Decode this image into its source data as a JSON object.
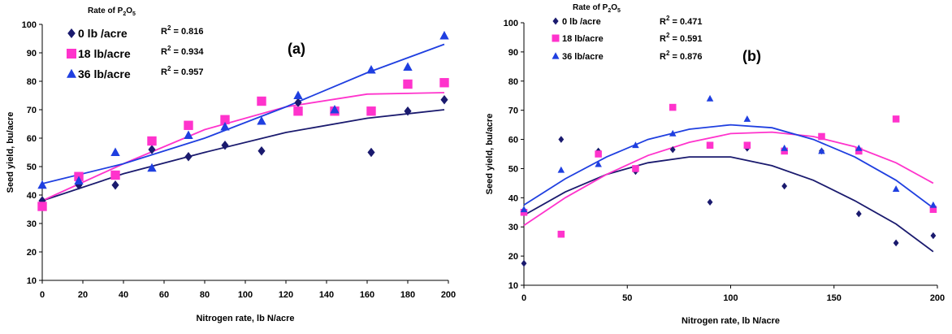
{
  "colors": {
    "s0": "#1a1a6e",
    "s18": "#ff33cc",
    "s36": "#1f3fe0"
  },
  "chart_data": [
    {
      "type": "scatter",
      "panel_label": "(a)",
      "xlabel": "Nitrogen rate, lb N/acre",
      "ylabel": "Seed yield, bu/acre",
      "xlim": [
        0,
        200
      ],
      "ylim": [
        10,
        100
      ],
      "xticks": [
        0,
        20,
        40,
        60,
        80,
        100,
        120,
        140,
        160,
        180,
        200
      ],
      "yticks": [
        10,
        20,
        30,
        40,
        50,
        60,
        70,
        80,
        90,
        100
      ],
      "grid": false,
      "legend": {
        "title_prefix": "Rate of P",
        "title_sub1": "2",
        "title_mid": "O",
        "title_sub2": "5",
        "placement": "top-left"
      },
      "series": [
        {
          "name": "0 lb /acre",
          "marker": "diamond",
          "color_key": "s0",
          "r2": "= 0.816",
          "x": [
            0,
            18,
            36,
            54,
            72,
            90,
            108,
            126,
            144,
            162,
            180,
            198
          ],
          "y": [
            38,
            43.5,
            43.5,
            56,
            53.5,
            57.5,
            55.5,
            72.5,
            69.5,
            55,
            69.5,
            73.5
          ],
          "fit": [
            [
              0,
              38
            ],
            [
              40,
              47.5
            ],
            [
              80,
              55
            ],
            [
              120,
              62
            ],
            [
              160,
              67
            ],
            [
              198,
              70
            ]
          ]
        },
        {
          "name": "18 lb/acre",
          "marker": "square",
          "color_key": "s18",
          "r2": "= 0.934",
          "x": [
            0,
            18,
            36,
            54,
            72,
            90,
            108,
            126,
            144,
            162,
            180,
            198
          ],
          "y": [
            36,
            46.5,
            47,
            59,
            64.5,
            66.5,
            73,
            69.5,
            69.5,
            69.5,
            79,
            79.5
          ],
          "fit": [
            [
              0,
              38
            ],
            [
              40,
              51
            ],
            [
              80,
              63
            ],
            [
              120,
              71
            ],
            [
              160,
              75.5
            ],
            [
              198,
              76
            ]
          ]
        },
        {
          "name": "36 lb/acre",
          "marker": "triangle",
          "color_key": "s36",
          "r2": "= 0.957",
          "x": [
            0,
            18,
            36,
            54,
            72,
            90,
            108,
            126,
            144,
            162,
            180,
            198
          ],
          "y": [
            43.5,
            45,
            55,
            49.5,
            61,
            64,
            66,
            75,
            70,
            84,
            85,
            96
          ],
          "fit": [
            [
              0,
              44
            ],
            [
              40,
              51
            ],
            [
              80,
              60
            ],
            [
              120,
              71
            ],
            [
              160,
              83
            ],
            [
              198,
              93
            ]
          ]
        }
      ]
    },
    {
      "type": "scatter",
      "panel_label": "(b)",
      "xlabel": "Nitrogen rate, lb N/acre",
      "ylabel": "Seed yield, bu/acre",
      "xlim": [
        0,
        200
      ],
      "ylim": [
        10,
        100
      ],
      "xticks": [
        0,
        50,
        100,
        150,
        200
      ],
      "yticks": [
        10,
        20,
        30,
        40,
        50,
        60,
        70,
        80,
        90,
        100
      ],
      "grid": false,
      "legend": {
        "title_prefix": "Rate of P",
        "title_sub1": "2",
        "title_mid": "O",
        "title_sub2": "5",
        "placement": "top-left"
      },
      "series": [
        {
          "name": "0 lb /acre",
          "marker": "diamond",
          "color_key": "s0",
          "r2": "= 0.471",
          "x": [
            0,
            18,
            36,
            54,
            72,
            90,
            108,
            126,
            144,
            162,
            180,
            198
          ],
          "y": [
            17.5,
            60,
            56,
            49,
            56.5,
            38.5,
            57,
            44,
            56,
            34.5,
            24.5,
            27
          ],
          "fit": [
            [
              0,
              34
            ],
            [
              20,
              42
            ],
            [
              40,
              48
            ],
            [
              60,
              52
            ],
            [
              80,
              54
            ],
            [
              100,
              54
            ],
            [
              120,
              51
            ],
            [
              140,
              46
            ],
            [
              160,
              39
            ],
            [
              180,
              31
            ],
            [
              198,
              21.5
            ]
          ]
        },
        {
          "name": "18 lb/acre",
          "marker": "square",
          "color_key": "s18",
          "r2": "= 0.591",
          "x": [
            0,
            18,
            36,
            54,
            72,
            90,
            108,
            126,
            144,
            162,
            180,
            198
          ],
          "y": [
            35,
            27.5,
            55,
            50,
            71,
            58,
            58,
            56,
            61,
            56,
            67,
            36
          ],
          "fit": [
            [
              0,
              30.5
            ],
            [
              20,
              40
            ],
            [
              40,
              48
            ],
            [
              60,
              54.5
            ],
            [
              80,
              59
            ],
            [
              100,
              62
            ],
            [
              120,
              62.5
            ],
            [
              140,
              61
            ],
            [
              160,
              57.5
            ],
            [
              180,
              52
            ],
            [
              198,
              45
            ]
          ]
        },
        {
          "name": "36 lb/acre",
          "marker": "triangle",
          "color_key": "s36",
          "r2": "= 0.876",
          "x": [
            0,
            18,
            36,
            54,
            72,
            90,
            108,
            126,
            144,
            162,
            180,
            198
          ],
          "y": [
            36,
            49.5,
            51.5,
            58,
            62,
            74,
            67,
            57,
            56,
            57,
            43,
            37.5
          ],
          "fit": [
            [
              0,
              37.5
            ],
            [
              20,
              46.5
            ],
            [
              40,
              54
            ],
            [
              60,
              60
            ],
            [
              80,
              63.5
            ],
            [
              100,
              65
            ],
            [
              120,
              64
            ],
            [
              140,
              60
            ],
            [
              160,
              54
            ],
            [
              180,
              46
            ],
            [
              198,
              36.5
            ]
          ]
        }
      ]
    }
  ]
}
